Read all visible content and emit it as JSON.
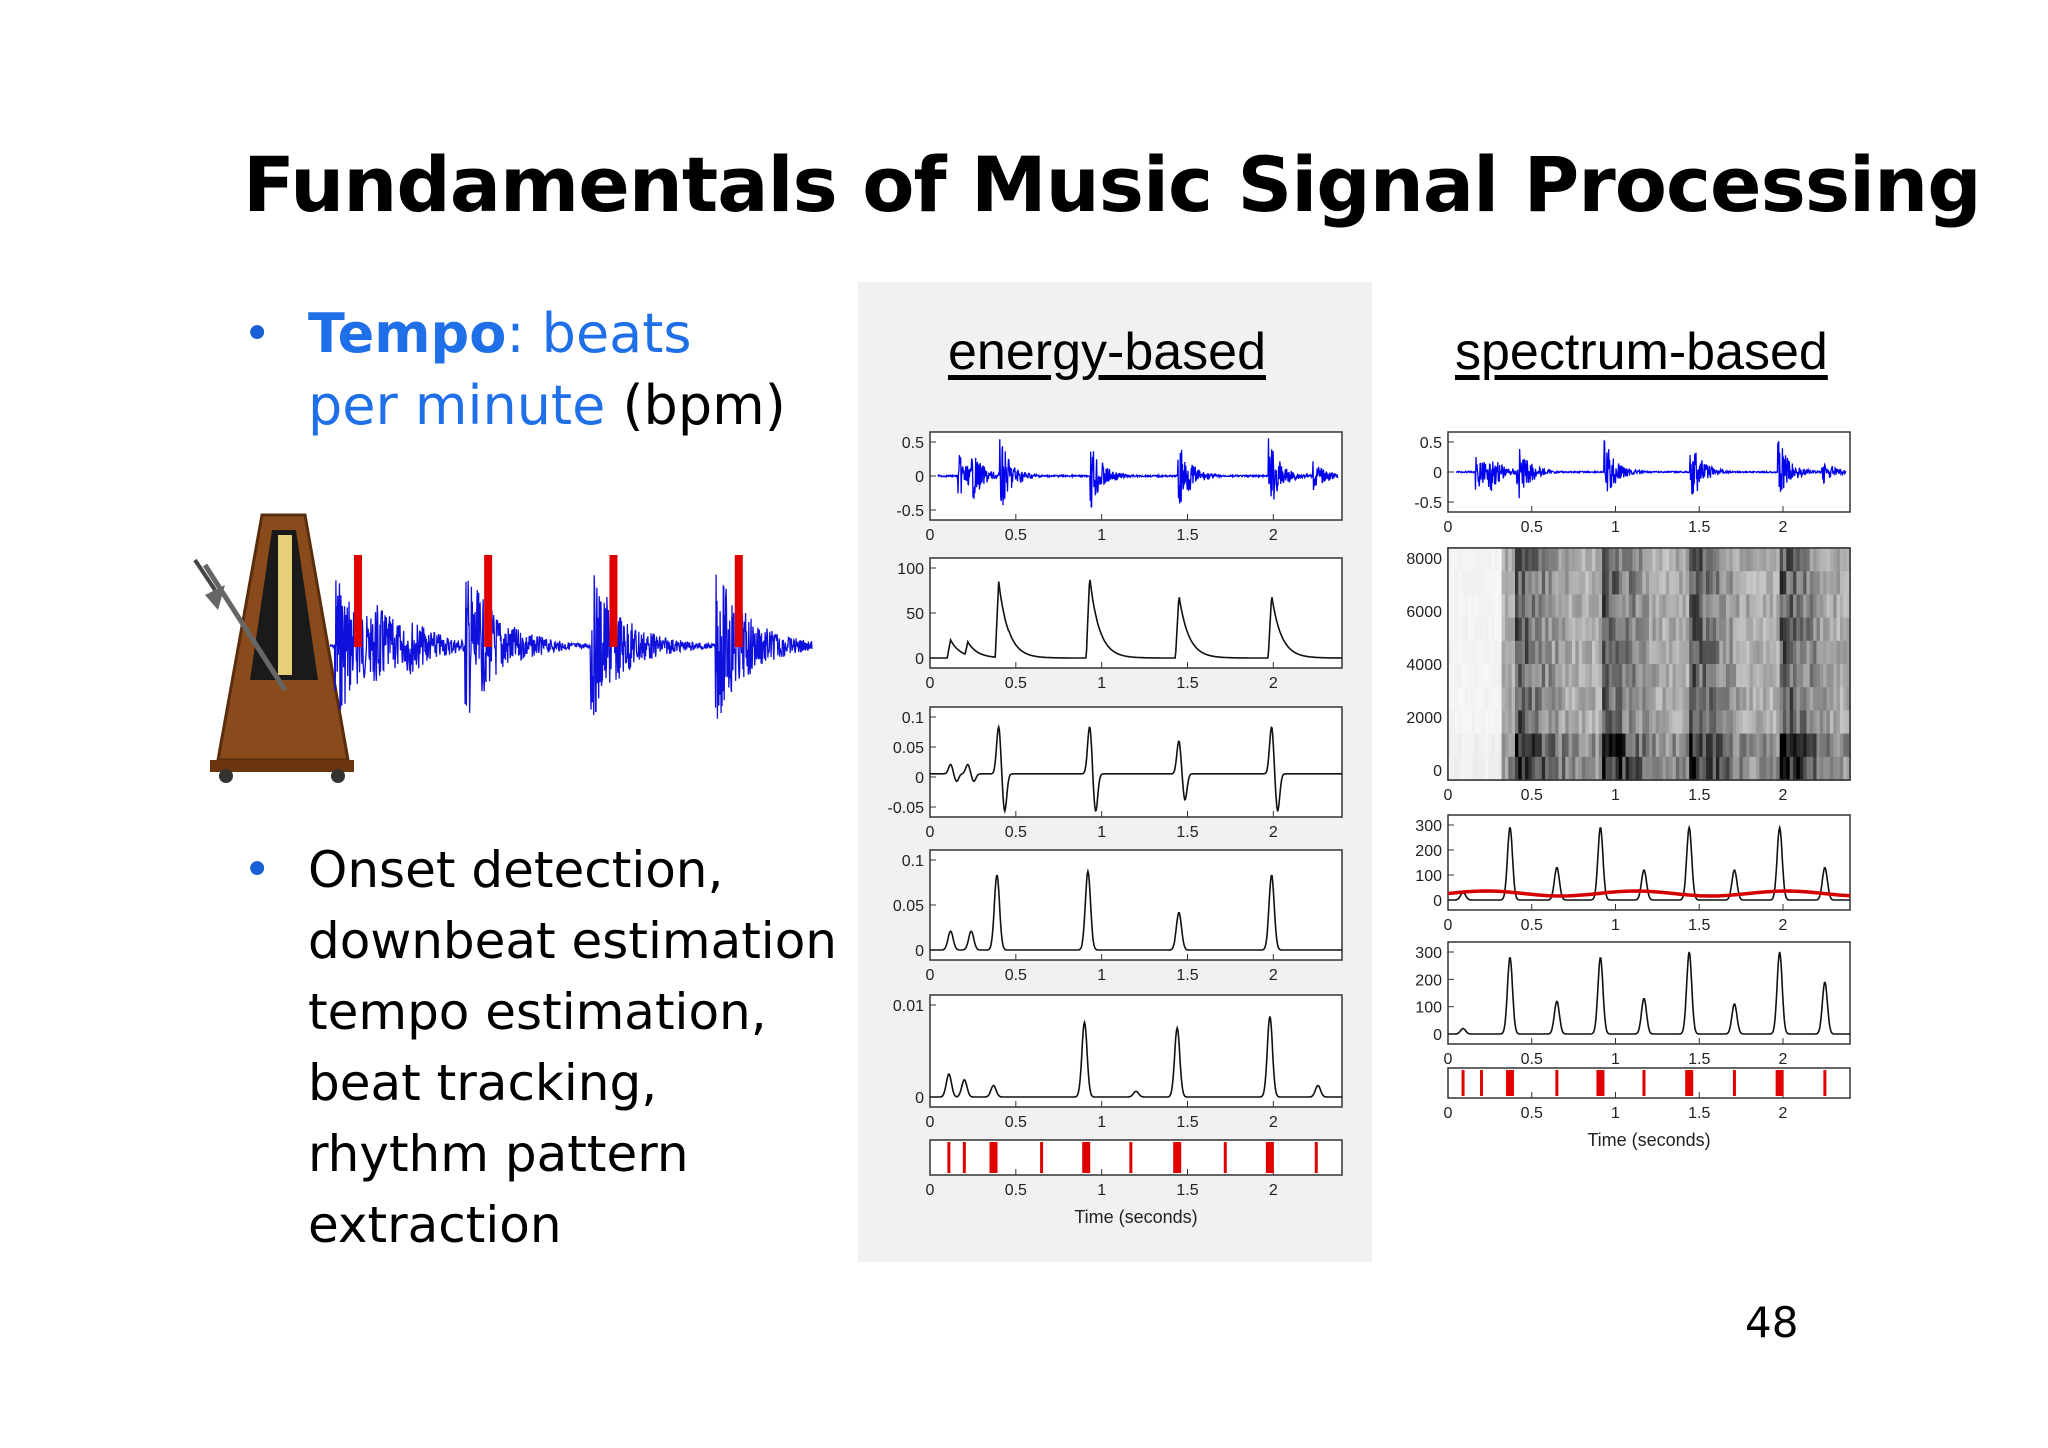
{
  "slide": {
    "title": "Fundamentals of Music Signal Processing",
    "page_number": "48"
  },
  "bullets": [
    {
      "marker": "•",
      "tempo_label": "Tempo",
      "colon": ": beats",
      "line2_blue": "per minute",
      "line2_rest": " (bpm)"
    },
    {
      "marker": "•",
      "lines": [
        "Onset detection,",
        "downbeat estimation",
        "tempo estimation,",
        "beat tracking,",
        "rhythm pattern",
        "extraction"
      ]
    }
  ],
  "figures": {
    "energy_title": "energy-based",
    "spectrum_title": "spectrum-based",
    "xlabel": "Time (seconds)"
  },
  "chart_data": [
    {
      "type": "line",
      "title": "energy-based",
      "panels": [
        {
          "ylim": [
            -0.5,
            0.5
          ],
          "yticks": [
            "0.5",
            "0",
            "-0.5"
          ],
          "xticks": [
            "0",
            "0.5",
            "1",
            "1.5",
            "2"
          ],
          "kind": "waveform",
          "color": "#0000ee"
        },
        {
          "ylim": [
            0,
            100
          ],
          "yticks": [
            "100",
            "50",
            "0"
          ],
          "xticks": [
            "0",
            "0.5",
            "1",
            "1.5",
            "2"
          ],
          "kind": "envelope",
          "peaks": [
            {
              "x": 0.12,
              "y": 20
            },
            {
              "x": 0.22,
              "y": 18
            },
            {
              "x": 0.4,
              "y": 85
            },
            {
              "x": 0.46,
              "y": 30
            },
            {
              "x": 0.93,
              "y": 90
            },
            {
              "x": 1.45,
              "y": 70
            },
            {
              "x": 1.99,
              "y": 70
            }
          ]
        },
        {
          "ylim": [
            -0.07,
            0.12
          ],
          "yticks": [
            "0.1",
            "0.05",
            "0",
            "-0.05"
          ],
          "xticks": [
            "0",
            "0.5",
            "1",
            "1.5",
            "2"
          ],
          "kind": "derivative",
          "peaks": [
            {
              "x": 0.12,
              "y": 0.02
            },
            {
              "x": 0.22,
              "y": 0.02
            },
            {
              "x": 0.4,
              "y": 0.1
            },
            {
              "x": 0.93,
              "y": 0.1
            },
            {
              "x": 1.45,
              "y": 0.07
            },
            {
              "x": 1.99,
              "y": 0.1
            }
          ]
        },
        {
          "ylim": [
            0,
            0.12
          ],
          "yticks": [
            "0.1",
            "0.05",
            "0"
          ],
          "xticks": [
            "0",
            "0.5",
            "1",
            "1.5",
            "2"
          ],
          "kind": "spikes",
          "peaks": [
            {
              "x": 0.12,
              "y": 0.025
            },
            {
              "x": 0.24,
              "y": 0.025
            },
            {
              "x": 0.39,
              "y": 0.1
            },
            {
              "x": 0.92,
              "y": 0.105
            },
            {
              "x": 1.45,
              "y": 0.05
            },
            {
              "x": 1.99,
              "y": 0.1
            }
          ]
        },
        {
          "ylim": [
            0,
            0.016
          ],
          "yticks": [
            "0.01",
            "0"
          ],
          "xticks": [
            "0",
            "0.5",
            "1",
            "1.5",
            "2"
          ],
          "kind": "spikes",
          "peaks": [
            {
              "x": 0.11,
              "y": 0.004
            },
            {
              "x": 0.2,
              "y": 0.003
            },
            {
              "x": 0.37,
              "y": 0.002
            },
            {
              "x": 0.9,
              "y": 0.013
            },
            {
              "x": 1.2,
              "y": 0.001
            },
            {
              "x": 1.44,
              "y": 0.012
            },
            {
              "x": 1.98,
              "y": 0.014
            },
            {
              "x": 2.26,
              "y": 0.002
            }
          ]
        },
        {
          "kind": "onsets",
          "xticks": [
            "0",
            "0.5",
            "1",
            "1.5",
            "2"
          ],
          "xlabel": "Time (seconds)",
          "onsets": [
            0.11,
            0.2,
            0.37,
            0.65,
            0.91,
            1.17,
            1.44,
            1.72,
            1.98,
            2.25
          ],
          "strong": [
            0.37,
            0.91,
            1.44,
            1.98
          ]
        }
      ]
    },
    {
      "type": "line",
      "title": "spectrum-based",
      "panels": [
        {
          "ylim": [
            -0.5,
            0.5
          ],
          "yticks": [
            "0.5",
            "0",
            "-0.5"
          ],
          "xticks": [
            "0",
            "0.5",
            "1",
            "1.5",
            "2"
          ],
          "kind": "waveform",
          "color": "#0000ee"
        },
        {
          "ylim": [
            0,
            8000
          ],
          "yticks": [
            "8000",
            "6000",
            "4000",
            "2000",
            "0"
          ],
          "xticks": [
            "0",
            "0.5",
            "1",
            "1.5",
            "2"
          ],
          "kind": "spectrogram",
          "onsets": [
            0.4,
            0.93,
            1.45,
            1.99
          ]
        },
        {
          "ylim": [
            0,
            300
          ],
          "yticks": [
            "300",
            "200",
            "100",
            "0"
          ],
          "xticks": [
            "0",
            "0.5",
            "1",
            "1.5",
            "2"
          ],
          "kind": "spikes-threshold",
          "peaks": [
            {
              "x": 0.09,
              "y": 30
            },
            {
              "x": 0.37,
              "y": 290
            },
            {
              "x": 0.65,
              "y": 130
            },
            {
              "x": 0.91,
              "y": 290
            },
            {
              "x": 1.17,
              "y": 120
            },
            {
              "x": 1.44,
              "y": 290
            },
            {
              "x": 1.71,
              "y": 120
            },
            {
              "x": 1.98,
              "y": 290
            },
            {
              "x": 2.25,
              "y": 130
            }
          ]
        },
        {
          "ylim": [
            0,
            300
          ],
          "yticks": [
            "300",
            "200",
            "100",
            "0"
          ],
          "xticks": [
            "0",
            "0.5",
            "1",
            "1.5",
            "2"
          ],
          "kind": "spikes",
          "peaks": [
            {
              "x": 0.09,
              "y": 20
            },
            {
              "x": 0.37,
              "y": 280
            },
            {
              "x": 0.65,
              "y": 120
            },
            {
              "x": 0.91,
              "y": 280
            },
            {
              "x": 1.17,
              "y": 130
            },
            {
              "x": 1.44,
              "y": 300
            },
            {
              "x": 1.71,
              "y": 110
            },
            {
              "x": 1.98,
              "y": 300
            },
            {
              "x": 2.25,
              "y": 190
            }
          ]
        },
        {
          "kind": "onsets",
          "xticks": [
            "0",
            "0.5",
            "1",
            "1.5",
            "2"
          ],
          "xlabel": "Time (seconds)",
          "onsets": [
            0.09,
            0.2,
            0.37,
            0.65,
            0.91,
            1.17,
            1.44,
            1.71,
            1.98,
            2.25
          ],
          "strong": [
            0.37,
            0.91,
            1.44,
            1.98
          ]
        }
      ]
    }
  ]
}
